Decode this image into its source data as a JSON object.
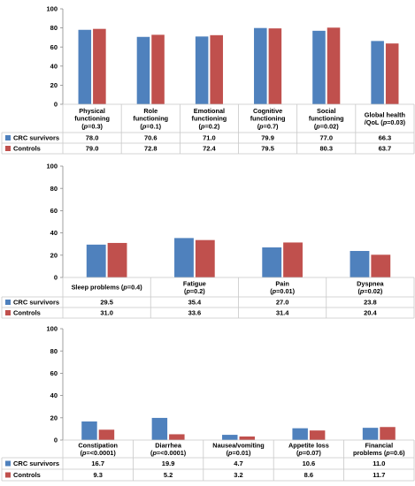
{
  "chart_data": [
    {
      "type": "bar",
      "ylim": [
        0,
        100
      ],
      "yticks": [
        0,
        20,
        40,
        60,
        80,
        100
      ],
      "categories": [
        [
          "Physical",
          "functioning",
          "(p=0.3)"
        ],
        [
          "Role",
          "functioning",
          "(p=0.1)"
        ],
        [
          "Emotional",
          "functioning",
          "(p=0.2)"
        ],
        [
          "Cognitive",
          "functioning",
          "(p=0.7)"
        ],
        [
          "Social",
          "functioning",
          "(p=0.02)"
        ],
        [
          "Global health",
          "/QoL (p=0.03)"
        ]
      ],
      "series": [
        {
          "name": "CRC survivors",
          "color": "#4F81BD",
          "values": [
            78.0,
            70.6,
            71.0,
            79.9,
            77.0,
            66.3
          ],
          "labels": [
            "78.0",
            "70.6",
            "71.0",
            "79.9",
            "77.0",
            "66.3"
          ]
        },
        {
          "name": "Controls",
          "color": "#C0504D",
          "values": [
            79.0,
            72.8,
            72.4,
            79.5,
            80.3,
            63.7
          ],
          "labels": [
            "79.0",
            "72.8",
            "72.4",
            "79.5",
            "80.3",
            "63.7"
          ]
        }
      ]
    },
    {
      "type": "bar",
      "ylim": [
        0,
        100
      ],
      "yticks": [
        0,
        20,
        40,
        60,
        80,
        100
      ],
      "categories": [
        [
          "Sleep problems (p=0.4)"
        ],
        [
          "Fatigue",
          "(p=0.2)"
        ],
        [
          "Pain",
          "(p=0.01)"
        ],
        [
          "Dyspnea",
          "(p=0.02)"
        ]
      ],
      "series": [
        {
          "name": "CRC survivors",
          "color": "#4F81BD",
          "values": [
            29.5,
            35.4,
            27.0,
            23.8
          ],
          "labels": [
            "29.5",
            "35.4",
            "27.0",
            "23.8"
          ]
        },
        {
          "name": "Controls",
          "color": "#C0504D",
          "values": [
            31.0,
            33.6,
            31.4,
            20.4
          ],
          "labels": [
            "31.0",
            "33.6",
            "31.4",
            "20.4"
          ]
        }
      ]
    },
    {
      "type": "bar",
      "ylim": [
        0,
        100
      ],
      "yticks": [
        0,
        20,
        40,
        60,
        80,
        100
      ],
      "categories": [
        [
          "Constipation",
          "(p=<0.0001)"
        ],
        [
          "Diarrhea",
          "(p=<0.0001)"
        ],
        [
          "Nausea/vomiting",
          "(p=0.01)"
        ],
        [
          "Appetite loss",
          "(p=0.07)"
        ],
        [
          "Financial",
          "problems (p=0.6)"
        ]
      ],
      "series": [
        {
          "name": "CRC survivors",
          "color": "#4F81BD",
          "values": [
            16.7,
            19.9,
            4.7,
            10.6,
            11.0
          ],
          "labels": [
            "16.7",
            "19.9",
            "4.7",
            "10.6",
            "11.0"
          ]
        },
        {
          "name": "Controls",
          "color": "#C0504D",
          "values": [
            9.3,
            5.2,
            3.2,
            8.6,
            11.7
          ],
          "labels": [
            "9.3",
            "5.2",
            "3.2",
            "8.6",
            "11.7"
          ]
        }
      ]
    }
  ]
}
